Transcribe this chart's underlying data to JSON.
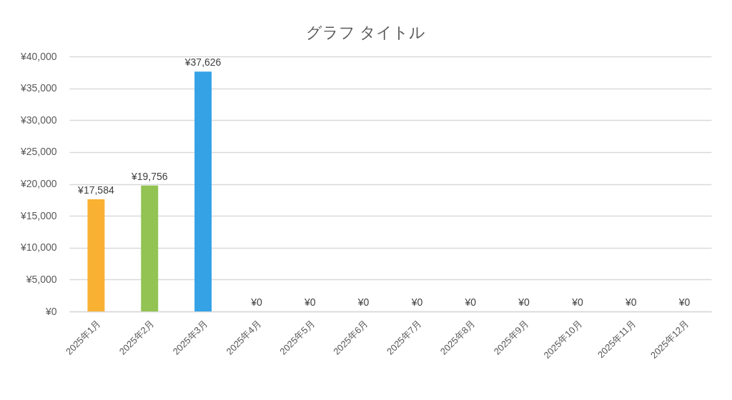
{
  "chart_data": {
    "type": "bar",
    "title": "グラフ タイトル",
    "categories": [
      "2025年1月",
      "2025年2月",
      "2025年3月",
      "2025年4月",
      "2025年5月",
      "2025年6月",
      "2025年7月",
      "2025年8月",
      "2025年9月",
      "2025年10月",
      "2025年11月",
      "2025年12月"
    ],
    "values": [
      17584,
      19756,
      37626,
      0,
      0,
      0,
      0,
      0,
      0,
      0,
      0,
      0
    ],
    "colors": [
      "#f8b133",
      "#92c353",
      "#35a2e6",
      "#f8b133",
      "#92c353",
      "#35a2e6",
      "#f8b133",
      "#92c353",
      "#35a2e6",
      "#f8b133",
      "#92c353",
      "#35a2e6"
    ],
    "value_labels": [
      "¥17,584",
      "¥19,756",
      "¥37,626",
      "¥0",
      "¥0",
      "¥0",
      "¥0",
      "¥0",
      "¥0",
      "¥0",
      "¥0",
      "¥0"
    ],
    "ylim": [
      0,
      40000
    ],
    "yticks": [
      {
        "value": 0,
        "label": "¥0"
      },
      {
        "value": 5000,
        "label": "¥5,000"
      },
      {
        "value": 10000,
        "label": "¥10,000"
      },
      {
        "value": 15000,
        "label": "¥15,000"
      },
      {
        "value": 20000,
        "label": "¥20,000"
      },
      {
        "value": 25000,
        "label": "¥25,000"
      },
      {
        "value": 30000,
        "label": "¥30,000"
      },
      {
        "value": 35000,
        "label": "¥35,000"
      },
      {
        "value": 40000,
        "label": "¥40,000"
      }
    ],
    "grid": "y"
  }
}
